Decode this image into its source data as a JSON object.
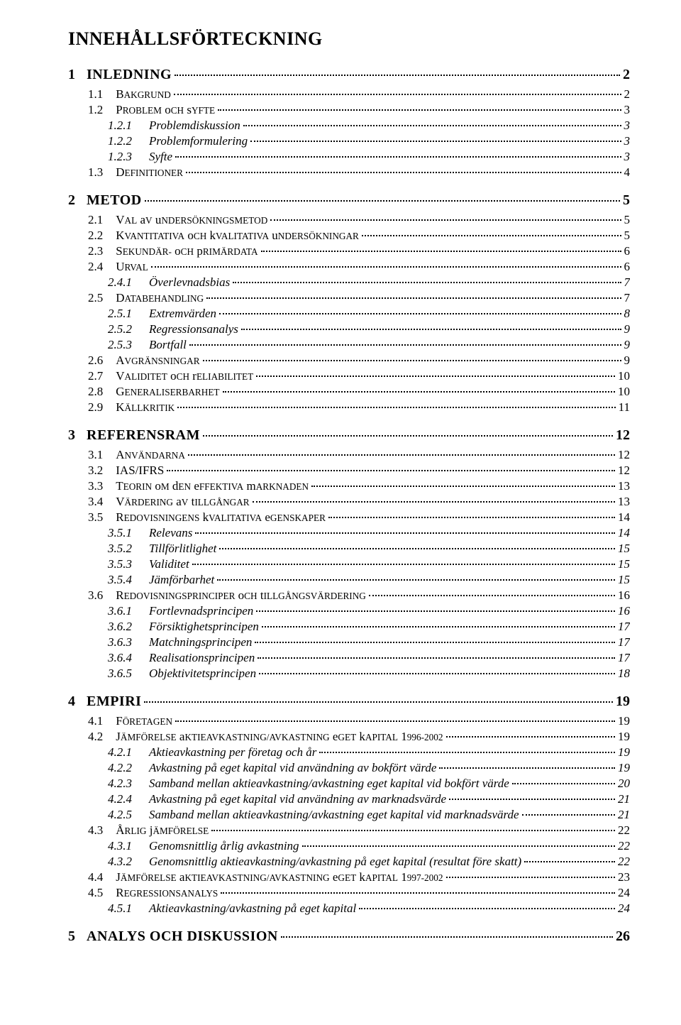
{
  "title": "INNEHÅLLSFÖRTECKNING",
  "entries": [
    {
      "level": 1,
      "num": "1",
      "text": "INLEDNING",
      "page": "2"
    },
    {
      "level": 2,
      "num": "1.1",
      "text": "Bakgrund",
      "page": "2",
      "smallcaps": true
    },
    {
      "level": 2,
      "num": "1.2",
      "text": "Problem och syfte",
      "page": "3",
      "smallcaps": true
    },
    {
      "level": 3,
      "num": "1.2.1",
      "text": "Problemdiskussion",
      "page": "3"
    },
    {
      "level": 3,
      "num": "1.2.2",
      "text": "Problemformulering",
      "page": "3"
    },
    {
      "level": 3,
      "num": "1.2.3",
      "text": "Syfte",
      "page": "3"
    },
    {
      "level": 2,
      "num": "1.3",
      "text": "Definitioner",
      "page": "4",
      "smallcaps": true
    },
    {
      "level": 1,
      "num": "2",
      "text": "METOD",
      "page": "5"
    },
    {
      "level": 2,
      "num": "2.1",
      "text": "Val av undersökningsmetod",
      "page": "5",
      "smallcaps": true
    },
    {
      "level": 2,
      "num": "2.2",
      "text": "Kvantitativa och kvalitativa undersökningar",
      "page": "5",
      "smallcaps": true
    },
    {
      "level": 2,
      "num": "2.3",
      "text": "Sekundär- och primärdata",
      "page": "6",
      "smallcaps": true
    },
    {
      "level": 2,
      "num": "2.4",
      "text": "Urval",
      "page": "6",
      "smallcaps": true
    },
    {
      "level": 3,
      "num": "2.4.1",
      "text": "Överlevnadsbias",
      "page": "7"
    },
    {
      "level": 2,
      "num": "2.5",
      "text": "Databehandling",
      "page": "7",
      "smallcaps": true
    },
    {
      "level": 3,
      "num": "2.5.1",
      "text": "Extremvärden",
      "page": "8"
    },
    {
      "level": 3,
      "num": "2.5.2",
      "text": "Regressionsanalys",
      "page": "9"
    },
    {
      "level": 3,
      "num": "2.5.3",
      "text": "Bortfall",
      "page": "9"
    },
    {
      "level": 2,
      "num": "2.6",
      "text": "Avgränsningar",
      "page": "9",
      "smallcaps": true
    },
    {
      "level": 2,
      "num": "2.7",
      "text": "Validitet och reliabilitet",
      "page": "10",
      "smallcaps": true
    },
    {
      "level": 2,
      "num": "2.8",
      "text": "Generaliserbarhet",
      "page": "10",
      "smallcaps": true
    },
    {
      "level": 2,
      "num": "2.9",
      "text": "Källkritik",
      "page": "11",
      "smallcaps": true
    },
    {
      "level": 1,
      "num": "3",
      "text": "REFERENSRAM",
      "page": "12"
    },
    {
      "level": 2,
      "num": "3.1",
      "text": "Användarna",
      "page": "12",
      "smallcaps": true
    },
    {
      "level": 2,
      "num": "3.2",
      "text": "IAS/IFRS",
      "page": "12",
      "smallcaps": false
    },
    {
      "level": 2,
      "num": "3.3",
      "text": "Teorin om den effektiva marknaden",
      "page": "13",
      "smallcaps": true
    },
    {
      "level": 2,
      "num": "3.4",
      "text": "Värdering av tillgångar",
      "page": "13",
      "smallcaps": true
    },
    {
      "level": 2,
      "num": "3.5",
      "text": "Redovisningens kvalitativa egenskaper",
      "page": "14",
      "smallcaps": true
    },
    {
      "level": 3,
      "num": "3.5.1",
      "text": "Relevans",
      "page": "14"
    },
    {
      "level": 3,
      "num": "3.5.2",
      "text": "Tillförlitlighet",
      "page": "15"
    },
    {
      "level": 3,
      "num": "3.5.3",
      "text": "Validitet",
      "page": "15"
    },
    {
      "level": 3,
      "num": "3.5.4",
      "text": "Jämförbarhet",
      "page": "15"
    },
    {
      "level": 2,
      "num": "3.6",
      "text": "Redovisningsprinciper och tillgångsvärdering",
      "page": "16",
      "smallcaps": true
    },
    {
      "level": 3,
      "num": "3.6.1",
      "text": "Fortlevnadsprincipen",
      "page": "16"
    },
    {
      "level": 3,
      "num": "3.6.2",
      "text": "Försiktighetsprincipen",
      "page": "17"
    },
    {
      "level": 3,
      "num": "3.6.3",
      "text": "Matchningsprincipen",
      "page": "17"
    },
    {
      "level": 3,
      "num": "3.6.4",
      "text": "Realisationsprincipen",
      "page": "17"
    },
    {
      "level": 3,
      "num": "3.6.5",
      "text": "Objektivitetsprincipen",
      "page": "18"
    },
    {
      "level": 1,
      "num": "4",
      "text": "EMPIRI",
      "page": "19"
    },
    {
      "level": 2,
      "num": "4.1",
      "text": "Företagen",
      "page": "19",
      "smallcaps": true
    },
    {
      "level": 2,
      "num": "4.2",
      "text": "Jämförelse aktieavkastning/avkastning eget kapital 1996-2002",
      "page": "19",
      "smallcaps": true
    },
    {
      "level": 3,
      "num": "4.2.1",
      "text": "Aktieavkastning per företag och år",
      "page": "19"
    },
    {
      "level": 3,
      "num": "4.2.2",
      "text": "Avkastning på eget kapital vid användning av bokfört värde",
      "page": "19"
    },
    {
      "level": 3,
      "num": "4.2.3",
      "text": "Samband mellan aktieavkastning/avkastning eget kapital vid bokfört värde",
      "page": "20"
    },
    {
      "level": 3,
      "num": "4.2.4",
      "text": "Avkastning på eget kapital vid användning av marknadsvärde",
      "page": "21"
    },
    {
      "level": 3,
      "num": "4.2.5",
      "text": "Samband mellan aktieavkastning/avkastning eget kapital vid marknadsvärde",
      "page": "21"
    },
    {
      "level": 2,
      "num": "4.3",
      "text": "Årlig jämförelse",
      "page": "22",
      "smallcaps": true
    },
    {
      "level": 3,
      "num": "4.3.1",
      "text": "Genomsnittlig årlig avkastning",
      "page": "22"
    },
    {
      "level": 3,
      "num": "4.3.2",
      "text": "Genomsnittlig aktieavkastning/avkastning på eget kapital (resultat före skatt)",
      "page": "22"
    },
    {
      "level": 2,
      "num": "4.4",
      "text": "Jämförelse aktieavkastning/avkastning eget kapital 1997-2002",
      "page": "23",
      "smallcaps": true
    },
    {
      "level": 2,
      "num": "4.5",
      "text": "Regressionsanalys",
      "page": "24",
      "smallcaps": true
    },
    {
      "level": 3,
      "num": "4.5.1",
      "text": "Aktieavkastning/avkastning på eget kapital",
      "page": "24"
    },
    {
      "level": 1,
      "num": "5",
      "text": "ANALYS OCH DISKUSSION",
      "page": "26"
    }
  ]
}
